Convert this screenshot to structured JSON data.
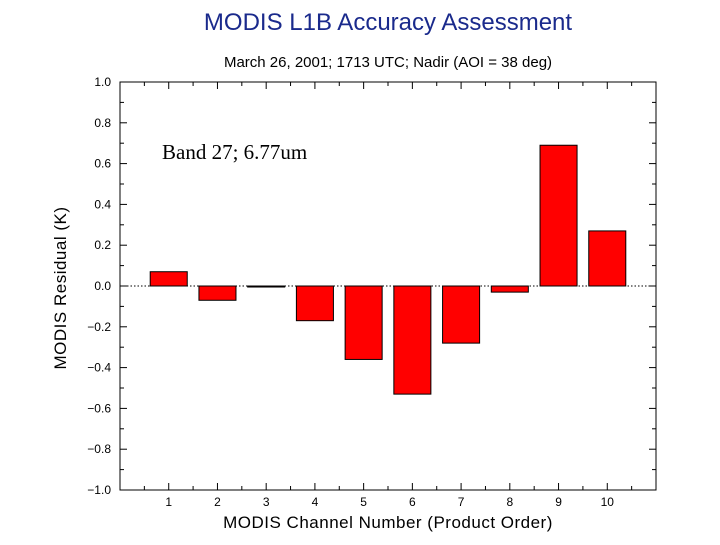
{
  "chart_data": {
    "type": "bar",
    "title": "MODIS L1B Accuracy Assessment",
    "subtitle": "March 26, 2001; 1713 UTC; Nadir (AOI = 38 deg)",
    "annotation": "Band 27; 6.77um",
    "xlabel": "MODIS Channel Number (Product Order)",
    "ylabel": "MODIS Residual (K)",
    "ylim": [
      -1.0,
      1.0
    ],
    "xlim": [
      0,
      11
    ],
    "ytick_values": [
      -1.0,
      -0.8,
      -0.6,
      -0.4,
      -0.2,
      0.0,
      0.2,
      0.4,
      0.6,
      0.8,
      1.0
    ],
    "ytick_labels": [
      "−1.0",
      "−0.8",
      "−0.6",
      "−0.4",
      "−0.2",
      "0.0",
      "0.2",
      "0.4",
      "0.6",
      "0.8",
      "1.0"
    ],
    "categories": [
      "1",
      "2",
      "3",
      "4",
      "5",
      "6",
      "7",
      "8",
      "9",
      "10"
    ],
    "values": [
      0.07,
      -0.07,
      -0.005,
      -0.17,
      -0.36,
      -0.53,
      -0.28,
      -0.03,
      0.69,
      0.27
    ],
    "bar_color": "#ff0000",
    "zero_line": "dotted",
    "grid": false
  }
}
